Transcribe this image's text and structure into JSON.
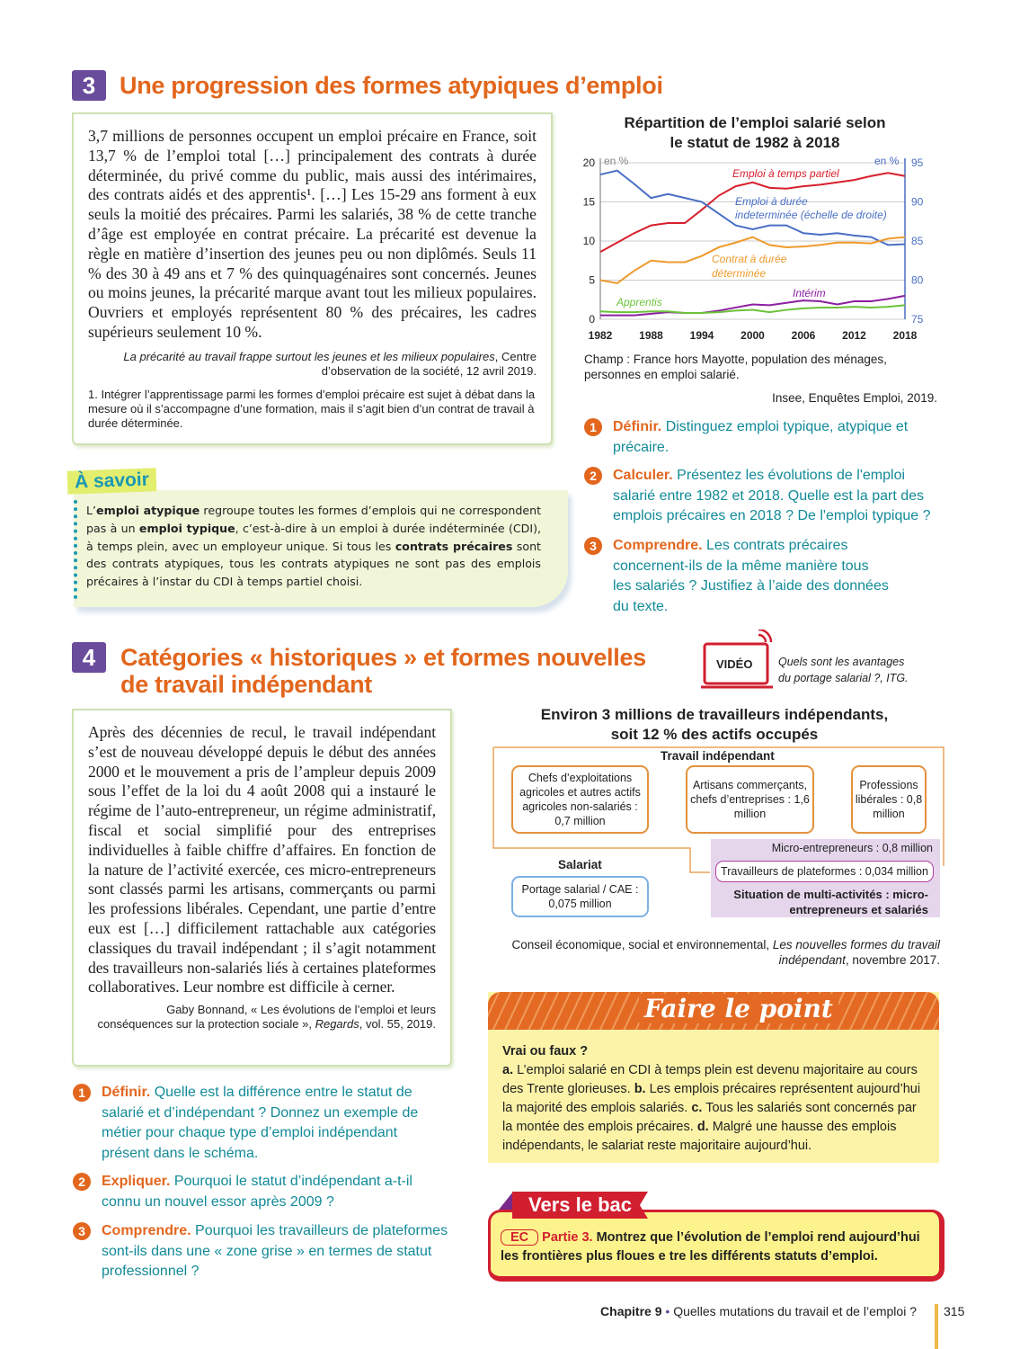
{
  "section3": {
    "number": "3",
    "title": "Une progression des formes atypiques d’emploi",
    "text": "3,7 millions de personnes occupent un emploi précaire en France, soit 13,7 % de l’emploi total […] principalement des contrats à durée déterminée, du privé comme du public, mais aussi des intérimaires, des contrats aidés et des apprentis¹. […] Les 15-29 ans forment à eux seuls la moitié des précaires. Parmi les salariés, 38 % de cette tranche d’âge est employée en contrat précaire. La précarité est devenue la règle en matière d’insertion des jeunes peu ou non diplômés. Seuls 11 % des 30 à 49 ans et 7 % des quinquagénaires sont concernés. Jeunes ou moins jeunes, la précarité marque avant tout les milieux populaires. Ouvriers et employés représentent 80 % des précaires, les cadres supérieurs seulement 10 %.",
    "source_title": "La précarité au travail frappe surtout les jeunes et les milieux populaires",
    "source_rest": ", Centre d’observation de la société, 12 avril 2019.",
    "footnote": "1. Intégrer l’apprentissage parmi les formes d’emploi précaire est sujet à débat dans la mesure où il s’accompagne d’une formation, mais il s’agit bien d’un contrat de travail à durée déterminée.",
    "chart_caption": "Champ : France hors Mayotte, population des ménages, personnes en emploi salarié.",
    "chart_source": "Insee, Enquêtes Emploi, 2019.",
    "questions": [
      {
        "n": "1",
        "label": "Définir.",
        "text": "Distinguez emploi typique, atypique et précaire."
      },
      {
        "n": "2",
        "label": "Calculer.",
        "text": "Présentez les évolutions de l'emploi salarié entre 1982 et 2018. Quelle est la part des emplois précaires en 2018 ? De l'emploi typique ?"
      },
      {
        "n": "3",
        "label": "Comprendre.",
        "text": "Les contrats précaires concernent-ils de la même manière tous les salariés ? Justifiez à l’aide des données du texte."
      }
    ]
  },
  "chart_data": {
    "type": "line",
    "title": "Répartition de l’emploi salarié selon le statut de 1982 à 2018",
    "ylabel": "en %",
    "y2label": "en %",
    "ylim": [
      0,
      20
    ],
    "y2lim": [
      75,
      95
    ],
    "yticks": [
      0,
      5,
      10,
      15,
      20
    ],
    "y2ticks": [
      75,
      80,
      85,
      90,
      95
    ],
    "xticks": [
      1982,
      1988,
      1994,
      2000,
      2006,
      2012,
      2018
    ],
    "grid": true,
    "x": [
      1982,
      1984,
      1986,
      1988,
      1990,
      1992,
      1994,
      1996,
      1998,
      2000,
      2002,
      2004,
      2006,
      2008,
      2010,
      2012,
      2014,
      2016,
      2018
    ],
    "series": [
      {
        "name": "Emploi à temps partiel",
        "axis": "left",
        "color": "#d8202e",
        "values": [
          8.6,
          9.8,
          11,
          12,
          12.3,
          12.3,
          14,
          15.8,
          17,
          17.5,
          16.8,
          16.7,
          17,
          17.2,
          17.5,
          17.8,
          18.3,
          18.7,
          18.3
        ]
      },
      {
        "name": "Emploi à durée indeterminée (échelle de droite)",
        "axis": "right",
        "color": "#4a6fc4",
        "values": [
          93.5,
          94,
          92.3,
          90.5,
          91,
          90.5,
          90,
          88.5,
          87,
          86.5,
          87,
          87,
          86,
          85.8,
          86,
          85.7,
          85.5,
          84.5,
          84.6
        ]
      },
      {
        "name": "Contrat à durée déterminée",
        "axis": "left",
        "color": "#ee9a2c",
        "values": [
          5,
          4.6,
          6.2,
          7.5,
          7.3,
          7.3,
          8.1,
          9.2,
          9.8,
          10.5,
          9.5,
          9.2,
          9.3,
          9.5,
          9.8,
          9.8,
          9.7,
          10.3,
          10.5
        ]
      },
      {
        "name": "Intérim",
        "axis": "left",
        "color": "#8b1fa0",
        "values": [
          0.5,
          0.5,
          0.5,
          0.7,
          0.9,
          0.8,
          0.8,
          1.1,
          1.5,
          1.9,
          1.8,
          2.1,
          2.4,
          2.3,
          1.9,
          2.3,
          2.3,
          2.6,
          3.0
        ]
      },
      {
        "name": "Apprentis",
        "axis": "left",
        "color": "#6cc33a",
        "values": [
          1,
          0.9,
          0.9,
          1,
          1,
          0.8,
          0.8,
          0.9,
          1.1,
          1.2,
          0.9,
          1.2,
          1.4,
          1.5,
          1.5,
          1.6,
          1.5,
          1.6,
          1.8
        ]
      }
    ]
  },
  "savoir": {
    "title": "À savoir",
    "html_parts": [
      "L’",
      "emploi atypique",
      " regroupe toutes les formes d’emplois qui ne correspondent pas à un ",
      "emploi typique",
      ", c’est-à-dire à un emploi à durée indéterminée (CDI), à temps plein, avec un employeur unique. Si tous les ",
      "contrats précaires",
      " sont des contrats atypiques, tous les contrats atypiques ne sont pas des emplois précaires à l’instar du CDI à temps partiel choisi."
    ]
  },
  "section4": {
    "number": "4",
    "title_line1": "Catégories « historiques » et formes nouvelles",
    "title_line2": "de travail indépendant",
    "video_label": "VIDÉO",
    "video_caption": "Quels sont les avantages du portage salarial ?, ITG.",
    "text": "Après des décennies de recul, le travail indépendant s’est de nouveau développé depuis le début des années 2000 et le mouvement a pris de l’ampleur depuis 2009 sous l’effet de la loi du 4 août 2008 qui a instauré le régime de l’auto-entrepreneur, un régime administratif, fiscal et social simplifié pour des entreprises individuelles à faible chiffre d’affaires. En fonction de la nature de l’activité exercée, ces micro-entrepreneurs sont classés parmi les artisans, commerçants ou parmi les professions libérales. Cependant, une partie d’entre eux est […] difficilement rattachable aux catégories classiques du travail indépendant ; il s’agit notamment des travailleurs non-salariés liés à certaines plateformes collaboratives. Leur nombre est difficile à cerner.",
    "source_a": "Gaby Bonnand, « Les évolutions de l’emploi et leurs conséquences sur la protection sociale », ",
    "source_journal": "Regards",
    "source_b": ", vol. 55, 2019.",
    "diagram": {
      "title": "Environ 3 millions de travailleurs indépendants, soit 12 % des actifs occupés",
      "independant_label": "Travail indépendant",
      "box_agri": "Chefs d’exploitations agricoles et autres actifs agricoles non-salariés : 0,7 million",
      "box_artisans": "Artisans commerçants, chefs d’entreprises : 1,6 million",
      "box_liberales": "Professions libérales : 0,8 million",
      "micro": "Micro-entrepreneurs : 0,8 million",
      "plateformes": "Travailleurs de plateformes : 0,034 million",
      "multi": "Situation de multi-activités : micro-entrepreneurs et salariés",
      "salariat_label": "Salariat",
      "portage": "Portage salarial / CAE : 0,075 million"
    },
    "diagram_source_a": "Conseil économique, social et environnemental, ",
    "diagram_source_title": "Les nouvelles formes du travail indépendant",
    "diagram_source_b": ", novembre 2017.",
    "questions": [
      {
        "n": "1",
        "label": "Définir.",
        "text": "Quelle est la différence entre le statut de salarié et d’indépendant ? Donnez un exemple de métier pour chaque type d’emploi indépendant présent dans le schéma."
      },
      {
        "n": "2",
        "label": "Expliquer.",
        "text": "Pourquoi le statut d’indépendant a-t-il connu un nouvel essor après 2009 ?"
      },
      {
        "n": "3",
        "label": "Comprendre.",
        "text": "Pourquoi les travailleurs de plateformes sont-ils dans une « zone grise » en termes de statut professionnel ?"
      }
    ]
  },
  "faire_le_point": {
    "title": "Faire le point",
    "heading": "Vrai ou faux ?",
    "items": [
      {
        "l": "a.",
        "t": " L’emploi salarié en CDI à temps plein est devenu majoritaire au cours des Trente glorieuses. "
      },
      {
        "l": "b.",
        "t": " Les emplois précaires représentent aujourd’hui la majorité des emplois salariés. "
      },
      {
        "l": "c.",
        "t": " Tous les salariés sont concernés par la montée des emplois précaires. "
      },
      {
        "l": "d.",
        "t": " Malgré une hausse des emplois indépendants, le salariat reste majoritaire aujourd’hui."
      }
    ]
  },
  "vers_le_bac": {
    "title": "Vers le bac",
    "tag": "EC",
    "part": "Partie 3.",
    "text": " Montrez que l’évolution de l’emploi rend aujourd’hui les frontières plus floues e  tre les différents statuts d’emploi."
  },
  "footer": {
    "chapter": "Chapitre 9",
    "bullet": " • ",
    "title": "Quelles mutations du travail et de l’emploi ?",
    "page": "315"
  },
  "colors": {
    "orange": "#e2661c",
    "purple": "#6a4c9c",
    "teal": "#128a98",
    "red": "#d11f2f",
    "yellow": "#fdf3a0"
  }
}
